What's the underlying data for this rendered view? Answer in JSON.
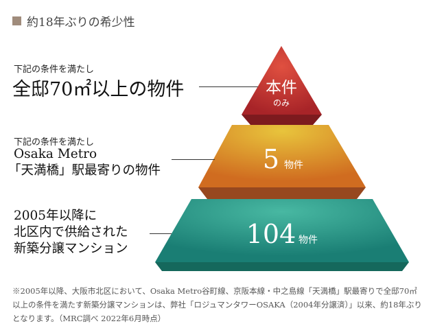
{
  "heading": {
    "icon": "square-bullet-icon",
    "text": "約18年ぶりの希少性",
    "color": "#a08c7c"
  },
  "labels": {
    "top": {
      "condition": "下記の条件を満たし",
      "main": "全邸70㎡以上の物件"
    },
    "middle": {
      "condition": "下記の条件を満たし",
      "line1": "Osaka Metro",
      "line2": "「天満橋」駅最寄りの物件"
    },
    "bottom": {
      "line1": "2005年以降に",
      "line2": "北区内で供給された",
      "line3": "新築分譲マンション"
    }
  },
  "pyramid": {
    "top": {
      "value": "本件",
      "sub": "のみ",
      "color": "#c8372f"
    },
    "middle": {
      "value": "5",
      "unit": "物件",
      "color": "#e0a030"
    },
    "bottom": {
      "value": "104",
      "unit": "物件",
      "color": "#2a9a8a"
    }
  },
  "footnote": "※2005年以降、大阪市北区において、Osaka Metro谷町線、京阪本線・中之島線「天満橋」駅最寄りで全邸70㎡以上の条件を満たす新築分譲マンションは、弊社「ロジュマンタワーOSAKA（2004年分譲済）」以来、約18年ぶりとなります。（MRC調べ 2022年6月時点）"
}
